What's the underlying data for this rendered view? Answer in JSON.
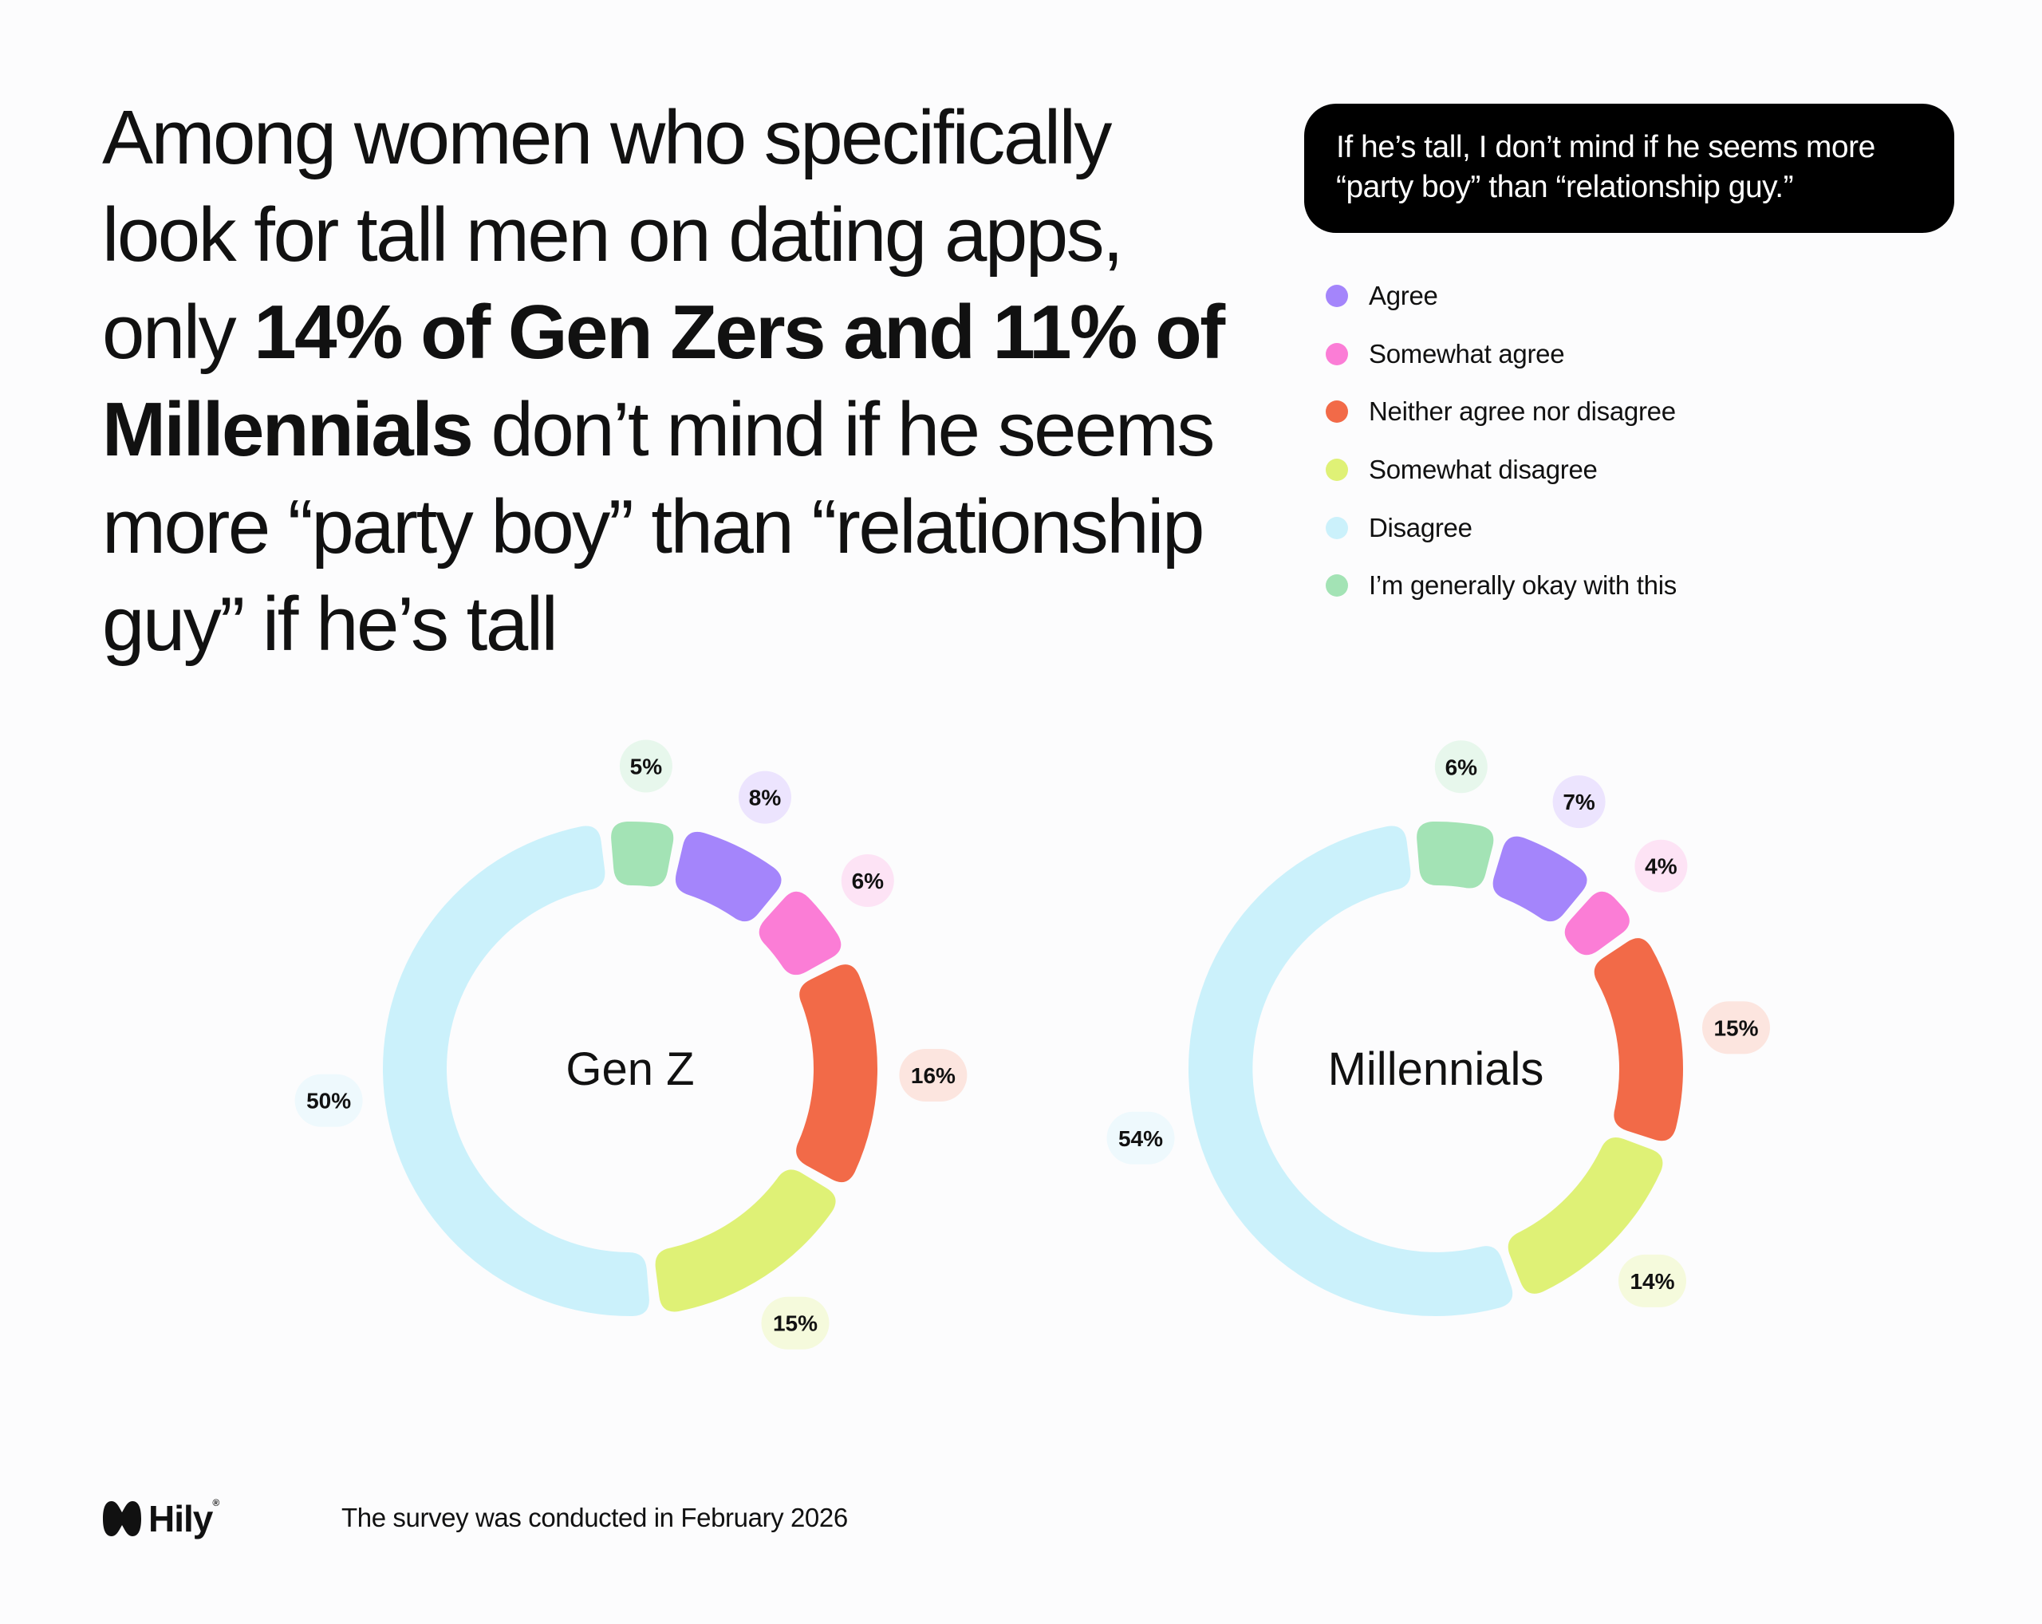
{
  "headline": {
    "part1": "Among women who specifically look for tall men on dating apps, only ",
    "bold": "14% of Gen Zers and 11% of Millennials",
    "part2": " don’t mind if he seems more “party boy” than “relationship guy” if he’s tall"
  },
  "question": "If he’s tall, I don’t mind if he seems more “party boy” than “relationship guy.”",
  "legend": [
    {
      "label": "Agree",
      "color": "#a485fb"
    },
    {
      "label": "Somewhat agree",
      "color": "#fb7dd6"
    },
    {
      "label": "Neither agree nor disagree",
      "color": "#f26a48"
    },
    {
      "label": "Somewhat disagree",
      "color": "#dff176"
    },
    {
      "label": "Disagree",
      "color": "#cbf1fb"
    },
    {
      "label": "I’m generally okay with this",
      "color": "#a3e3b5"
    }
  ],
  "chart_data": [
    {
      "type": "pie",
      "variant": "donut",
      "center_label": "Gen Z",
      "categories": [
        "Agree",
        "Somewhat agree",
        "Neither agree nor disagree",
        "Somewhat disagree",
        "Disagree",
        "I’m generally okay with this"
      ],
      "values": [
        8,
        6,
        16,
        15,
        50,
        5
      ],
      "labels": [
        "8%",
        "6%",
        "16%",
        "15%",
        "50%",
        "5%"
      ]
    },
    {
      "type": "pie",
      "variant": "donut",
      "center_label": "Millennials",
      "categories": [
        "Agree",
        "Somewhat agree",
        "Neither agree nor disagree",
        "Somewhat disagree",
        "Disagree",
        "I’m generally okay with this"
      ],
      "values": [
        7,
        4,
        15,
        14,
        54,
        6
      ],
      "labels": [
        "7%",
        "4%",
        "15%",
        "14%",
        "54%",
        "6%"
      ]
    }
  ],
  "label_backgrounds": [
    "#ece4fe",
    "#fde3f5",
    "#fce5df",
    "#f5fadc",
    "#eef9fd",
    "#e7f7ec"
  ],
  "footer": {
    "logo": "Hily",
    "logo_mark": "®",
    "note": "The survey was conducted in February 2026"
  }
}
